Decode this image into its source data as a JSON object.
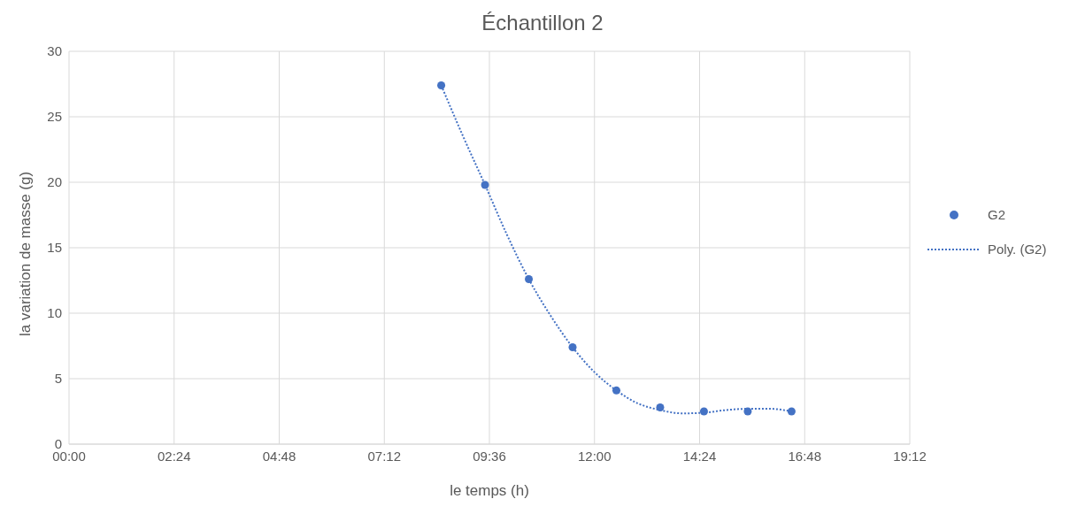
{
  "chart_data": {
    "type": "scatter",
    "title": "Échantillon 2",
    "xlabel": "le temps (h)",
    "ylabel": "la variation de masse (g)",
    "x": [
      8.5,
      9.5,
      10.5,
      11.5,
      12.5,
      13.5,
      14.5,
      15.5,
      16.5
    ],
    "series": [
      {
        "name": "G2",
        "color": "#4472c4",
        "marker": "circle",
        "values": [
          27.4,
          19.8,
          12.6,
          7.4,
          4.1,
          2.8,
          2.5,
          2.5,
          2.5
        ]
      },
      {
        "name": "Poly. (G2)",
        "color": "#4472c4",
        "type": "line",
        "marker": "none",
        "line_style": "dotted",
        "x": [
          8.5,
          9,
          9.5,
          10,
          10.5,
          11,
          11.5,
          12,
          12.5,
          13,
          13.5,
          14,
          14.5,
          15,
          15.5,
          16,
          16.5
        ],
        "values": [
          27.4,
          23.5,
          19.8,
          16,
          12.6,
          9.8,
          7.4,
          5.5,
          4.1,
          3.1,
          2.6,
          2.35,
          2.4,
          2.6,
          2.7,
          2.7,
          2.5
        ]
      }
    ],
    "xlim": [
      0,
      19.2
    ],
    "xticks": [
      {
        "value": 0,
        "label": "00:00"
      },
      {
        "value": 2.4,
        "label": "02:24"
      },
      {
        "value": 4.8,
        "label": "04:48"
      },
      {
        "value": 7.2,
        "label": "07:12"
      },
      {
        "value": 9.6,
        "label": "09:36"
      },
      {
        "value": 12,
        "label": "12:00"
      },
      {
        "value": 14.4,
        "label": "14:24"
      },
      {
        "value": 16.8,
        "label": "16:48"
      },
      {
        "value": 19.2,
        "label": "19:12"
      }
    ],
    "ylim": [
      0,
      30
    ],
    "yticks": [
      0,
      5,
      10,
      15,
      20,
      25,
      30
    ],
    "grid": true,
    "legend": "right"
  }
}
